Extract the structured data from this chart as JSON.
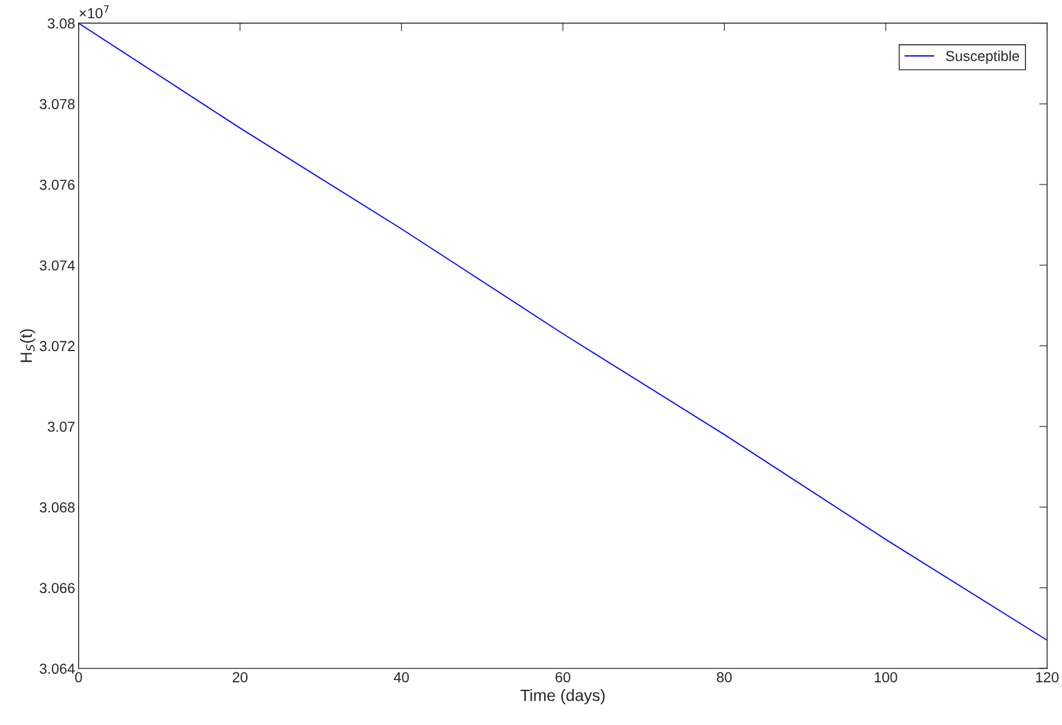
{
  "chart_data": {
    "type": "line",
    "xlabel": "Time (days)",
    "ylabel": "H$_{S}$(t)",
    "annotations": [
      "×10$^{7}$"
    ],
    "x": [
      0,
      20,
      40,
      60,
      80,
      100,
      120
    ],
    "series": [
      {
        "name": "Susceptible",
        "color": "#0000ff",
        "values": [
          3.08,
          3.0774,
          3.0749,
          3.0723,
          3.0698,
          3.0672,
          3.0647
        ]
      }
    ],
    "xlim": [
      0,
      120
    ],
    "xticks": [
      0,
      20,
      40,
      60,
      80,
      100,
      120
    ],
    "ylim": [
      3.064,
      3.08
    ],
    "yticks": [
      3.064,
      3.066,
      3.068,
      3.07,
      3.072,
      3.074,
      3.076,
      3.078,
      3.08
    ],
    "grid": false,
    "legend": "top right",
    "marker": "none",
    "line_style": "solid"
  }
}
